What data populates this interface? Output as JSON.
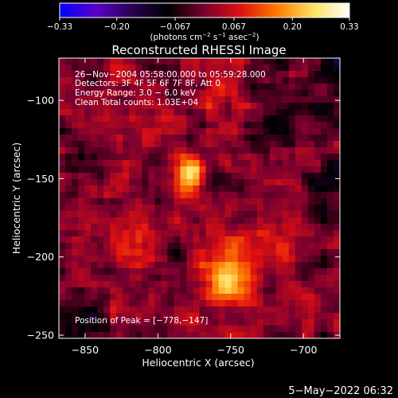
{
  "colorbar": {
    "ticks": [
      {
        "value": -0.33,
        "label": "−0.33"
      },
      {
        "value": -0.2,
        "label": "−0.20"
      },
      {
        "value": -0.067,
        "label": "−0.067"
      },
      {
        "value": 0.067,
        "label": "0.067"
      },
      {
        "value": 0.2,
        "label": "0.20"
      },
      {
        "value": 0.33,
        "label": "0.33"
      }
    ],
    "unit_prefix": "(photons cm",
    "unit_exp1": "−2",
    "unit_mid1": " s",
    "unit_exp2": "−1",
    "unit_mid2": " asec",
    "unit_exp3": "−2",
    "unit_suffix": ")",
    "colors": [
      "#0000ff",
      "#5a00c8",
      "#2a0050",
      "#000000",
      "#7a0030",
      "#e01010",
      "#ff7a00",
      "#ffe060",
      "#ffffff"
    ]
  },
  "annotations": {
    "time": "26−Nov−2004 05:58:00.000 to 05:59:28.000",
    "detectors": "Detectors: 3F 4F 5F 6F 7F 8F, Att 0",
    "energy": "Energy Range: 3.0 − 6.0 keV",
    "clean": "Clean    Total counts: 1.03E+04",
    "peak": "Position of Peak = [−778,−147]"
  },
  "footer": {
    "timestamp": "5−May−2022 06:32"
  },
  "chart_data": {
    "type": "heatmap",
    "title": "Reconstructed RHESSI Image",
    "xlabel": "Heliocentric X (arcsec)",
    "ylabel": "Heliocentric Y (arcsec)",
    "xlim": [
      -868,
      -675
    ],
    "ylim": [
      -252,
      -73
    ],
    "x_ticks": [
      {
        "value": -850,
        "label": "−850"
      },
      {
        "value": -800,
        "label": "−800"
      },
      {
        "value": -750,
        "label": "−750"
      },
      {
        "value": -700,
        "label": "−700"
      }
    ],
    "y_ticks": [
      {
        "value": -100,
        "label": "−100"
      },
      {
        "value": -150,
        "label": "−150"
      },
      {
        "value": -200,
        "label": "−200"
      },
      {
        "value": -250,
        "label": "−250"
      }
    ],
    "color_range": [
      -0.33,
      0.33
    ],
    "sources": [
      {
        "x": -778,
        "y": -147,
        "peak": 0.33
      },
      {
        "x": -752,
        "y": -213,
        "peak": 0.2
      },
      {
        "x": -727,
        "y": -188,
        "peak": 0.09
      },
      {
        "x": -812,
        "y": -195,
        "peak": 0.08
      },
      {
        "x": -760,
        "y": -105,
        "peak": 0.06
      }
    ],
    "noise_level": 0.1,
    "grid": false
  }
}
